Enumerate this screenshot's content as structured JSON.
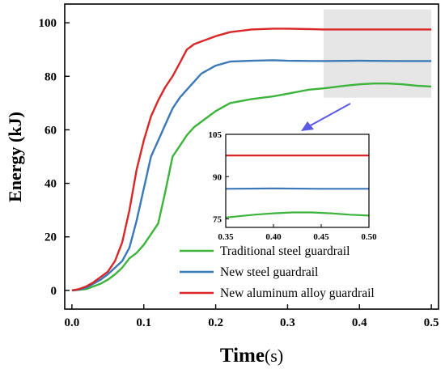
{
  "chart_data": {
    "type": "line",
    "title": "",
    "xlabel": "Time",
    "xlabel_unit": "(s)",
    "ylabel": "Energy (kJ)",
    "xlim": [
      -0.01,
      0.51
    ],
    "ylim": [
      -7,
      107
    ],
    "x_ticks": [
      0.0,
      0.1,
      0.2,
      0.3,
      0.4,
      0.5
    ],
    "x_tick_labels": [
      "0.0",
      "0.1",
      "0.2",
      "0.3",
      "0.4",
      "0.5"
    ],
    "y_ticks": [
      0,
      20,
      40,
      60,
      80,
      100
    ],
    "y_tick_labels": [
      "0",
      "20",
      "40",
      "60",
      "80",
      "100"
    ],
    "grid": false,
    "legend_position": "bottom-right",
    "highlight_region": {
      "x": [
        0.35,
        0.5
      ],
      "y": [
        72,
        105
      ],
      "color": "#e6e6e6"
    },
    "series": [
      {
        "name": "Traditional steel guardrail",
        "color": "#3cb43c",
        "x": [
          0.0,
          0.01,
          0.02,
          0.03,
          0.04,
          0.05,
          0.06,
          0.07,
          0.08,
          0.09,
          0.1,
          0.11,
          0.12,
          0.13,
          0.14,
          0.15,
          0.16,
          0.17,
          0.18,
          0.19,
          0.2,
          0.22,
          0.25,
          0.28,
          0.3,
          0.33,
          0.35,
          0.38,
          0.4,
          0.42,
          0.44,
          0.46,
          0.48,
          0.5
        ],
        "values": [
          0,
          0.2,
          0.5,
          1.5,
          2.5,
          4,
          6,
          8.5,
          12,
          14,
          17,
          21,
          25,
          37,
          50,
          54,
          58,
          61,
          63,
          65,
          67,
          70,
          71.5,
          72.5,
          73.5,
          75,
          75.5,
          76.5,
          77,
          77.3,
          77.3,
          77,
          76.5,
          76.2
        ]
      },
      {
        "name": "New steel guardrail",
        "color": "#3a78b8",
        "x": [
          0.0,
          0.01,
          0.02,
          0.03,
          0.04,
          0.05,
          0.06,
          0.07,
          0.08,
          0.09,
          0.1,
          0.11,
          0.12,
          0.13,
          0.14,
          0.15,
          0.16,
          0.17,
          0.18,
          0.19,
          0.2,
          0.22,
          0.25,
          0.28,
          0.3,
          0.35,
          0.4,
          0.45,
          0.5
        ],
        "values": [
          0,
          0.3,
          1,
          2.5,
          4,
          6,
          8.5,
          11,
          16,
          26,
          38,
          50,
          56,
          62,
          68,
          72,
          75,
          78,
          81,
          82.5,
          84,
          85.5,
          85.8,
          86,
          85.8,
          85.7,
          85.8,
          85.7,
          85.7
        ]
      },
      {
        "name": "New aluminum alloy guardrail",
        "color": "#d92626",
        "x": [
          0.0,
          0.01,
          0.02,
          0.03,
          0.04,
          0.05,
          0.06,
          0.07,
          0.08,
          0.09,
          0.1,
          0.11,
          0.12,
          0.13,
          0.14,
          0.15,
          0.16,
          0.17,
          0.18,
          0.19,
          0.2,
          0.22,
          0.25,
          0.28,
          0.3,
          0.35,
          0.4,
          0.45,
          0.5
        ],
        "values": [
          0,
          0.5,
          1.5,
          3,
          5,
          7,
          11,
          18,
          30,
          45,
          56,
          65,
          71,
          76,
          80,
          85,
          90,
          92,
          93,
          94,
          95,
          96.5,
          97.5,
          97.8,
          97.8,
          97.5,
          97.5,
          97.5,
          97.5
        ]
      }
    ],
    "inset": {
      "xlim": [
        0.35,
        0.5
      ],
      "ylim": [
        72,
        105
      ],
      "x_ticks": [
        0.35,
        0.4,
        0.45,
        0.5
      ],
      "x_tick_labels": [
        "0.35",
        "0.40",
        "0.45",
        "0.50"
      ],
      "y_ticks": [
        75,
        90,
        105
      ],
      "y_tick_labels": [
        "75",
        "90",
        "105"
      ]
    }
  }
}
